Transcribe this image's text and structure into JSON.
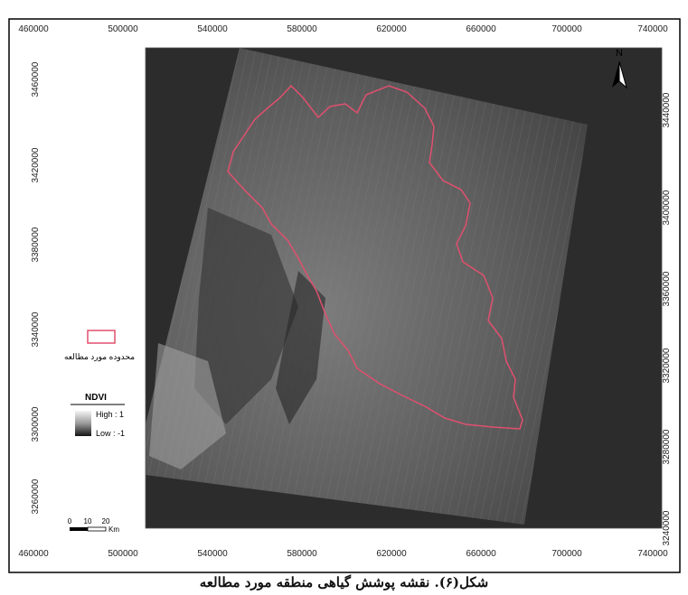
{
  "map": {
    "x_ticks": [
      "460000",
      "500000",
      "540000",
      "580000",
      "620000",
      "660000",
      "700000",
      "740000"
    ],
    "y_ticks_left": [
      "3460000",
      "3420000",
      "3380000",
      "3340000",
      "3300000",
      "3260000"
    ],
    "y_ticks_right": [
      "3440000",
      "3400000",
      "3360000",
      "3320000",
      "3280000",
      "3240000"
    ],
    "north_label": "N",
    "legend": {
      "boundary_label": "محدوده مورد مطالعه",
      "boundary_color": "#e0506e",
      "ndvi_title": "NDVI",
      "ndvi_high": "High : 1",
      "ndvi_low": "Low : -1"
    },
    "scale_bar": {
      "labels": [
        "0",
        "10",
        "20"
      ],
      "unit": "Km"
    }
  },
  "caption": "شکل(۶). نقشه پوشش گیاهی منطقه مورد مطالعه"
}
